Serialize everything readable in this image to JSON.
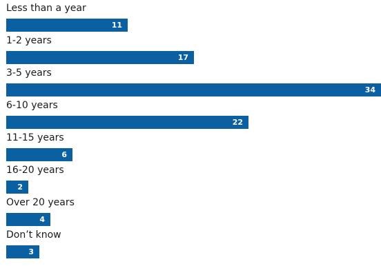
{
  "chart_data": {
    "type": "bar",
    "orientation": "horizontal",
    "categories": [
      "Less than a year",
      "1-2 years",
      "3-5 years",
      "6-10 years",
      "11-15 years",
      "16-20 years",
      "Over 20 years",
      "Don’t know"
    ],
    "values": [
      11,
      17,
      34,
      22,
      6,
      2,
      4,
      3
    ],
    "title": "",
    "xlabel": "",
    "ylabel": "",
    "xlim": [
      0,
      34
    ],
    "grid": false,
    "legend": "none",
    "colors": {
      "bar": "#0a60a0",
      "value_label": "#ffffff",
      "category_label": "#1a1a1a"
    }
  }
}
